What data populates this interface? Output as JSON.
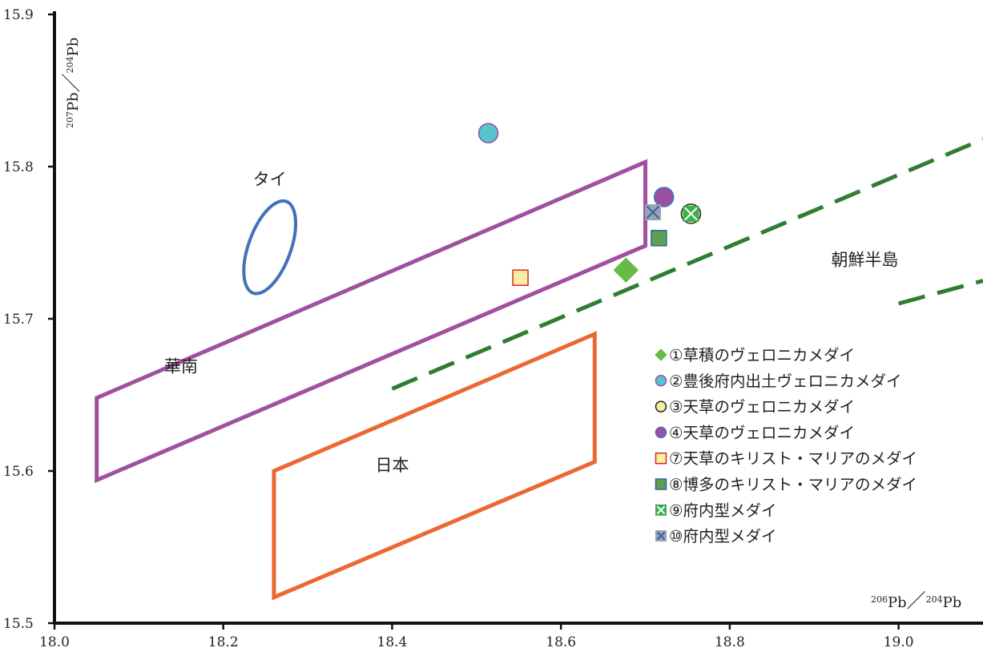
{
  "chart_data": {
    "type": "scatter",
    "x_axis": {
      "range": [
        18.0,
        19.1
      ],
      "ticks": [
        18.0,
        18.2,
        18.4,
        18.6,
        18.8,
        19.0
      ],
      "tick_labels": [
        "18.0",
        "18.2",
        "18.4",
        "18.6",
        "18.8",
        "19.0"
      ],
      "label": {
        "iso_top": "206",
        "el_top": "Pb",
        "sep": "／",
        "iso_bottom": "204",
        "el_bottom": "Pb"
      }
    },
    "y_axis": {
      "range": [
        15.5,
        15.9
      ],
      "ticks": [
        15.5,
        15.6,
        15.7,
        15.8,
        15.9
      ],
      "tick_labels": [
        "15.5",
        "15.6",
        "15.7",
        "15.8",
        "15.9"
      ],
      "label": {
        "iso_top": "207",
        "el_top": "Pb",
        "sep": "／",
        "iso_bottom": "204",
        "el_bottom": "Pb"
      }
    },
    "grid": false,
    "legend_position": "bottom-right",
    "regions": [
      {
        "id": "south-china",
        "label": "華南",
        "color": "#a0509f",
        "polygon": [
          [
            18.05,
            15.648
          ],
          [
            18.7,
            15.803
          ],
          [
            18.7,
            15.748
          ],
          [
            18.05,
            15.594
          ]
        ],
        "label_at": [
          18.13,
          15.665
        ]
      },
      {
        "id": "japan",
        "label": "日本",
        "color": "#ed6830",
        "polygon": [
          [
            18.26,
            15.6
          ],
          [
            18.64,
            15.69
          ],
          [
            18.64,
            15.606
          ],
          [
            18.26,
            15.517
          ]
        ],
        "label_at": [
          18.4,
          15.6
        ]
      },
      {
        "id": "thailand",
        "label": "タイ",
        "color": "#3f72b7",
        "shape": "ellipse",
        "center": [
          18.255,
          15.747
        ],
        "rx": 0.025,
        "ry": 0.032,
        "label_at": [
          18.255,
          15.788
        ]
      },
      {
        "id": "korea",
        "label": "朝鮮半島",
        "color": "#2e7d32",
        "shape": "dashed-lines",
        "lines": [
          [
            [
              18.4,
              15.654
            ],
            [
              19.1,
              15.818
            ]
          ],
          [
            [
              19.0,
              15.71
            ],
            [
              19.1,
              15.725
            ]
          ]
        ],
        "label_at": [
          18.96,
          15.735
        ]
      }
    ],
    "series": [
      {
        "name": "①草積のヴェロニカメダイ",
        "marker": "diamond",
        "fill": "#66bb46",
        "stroke": "#66bb46",
        "x": 18.677,
        "y": 15.732
      },
      {
        "name": "②豊後府内出土ヴェロニカメダイ",
        "marker": "circle",
        "fill": "#56c3d0",
        "stroke": "#a0509f",
        "x": 18.514,
        "y": 15.822
      },
      {
        "name": "③天草のヴェロニカメダイ",
        "marker": "circle",
        "fill": "#f3ee9c",
        "stroke": "#222222",
        "x": 18.754,
        "y": 15.769
      },
      {
        "name": "④天草のヴェロニカメダイ",
        "marker": "circle",
        "fill": "#9d4fa0",
        "stroke": "#3f72b7",
        "x": 18.722,
        "y": 15.78
      },
      {
        "name": "⑦天草のキリスト・マリアのメダイ",
        "marker": "square",
        "fill": "#fbeea4",
        "stroke": "#d42a23",
        "x": 18.552,
        "y": 15.727
      },
      {
        "name": "⑧博多のキリスト・マリアのメダイ",
        "marker": "square",
        "fill": "#5f9f4f",
        "stroke": "#2a63a6",
        "x": 18.716,
        "y": 15.753
      },
      {
        "name": "⑨府内型メダイ",
        "marker": "square-x",
        "fill": "#3cb04f",
        "stroke": "#ffffff",
        "x": 18.754,
        "y": 15.769
      },
      {
        "name": "⑩府内型メダイ",
        "marker": "square-x",
        "fill": "#97a3b8",
        "stroke": "#3f5f9f",
        "x": 18.709,
        "y": 15.77
      }
    ]
  }
}
